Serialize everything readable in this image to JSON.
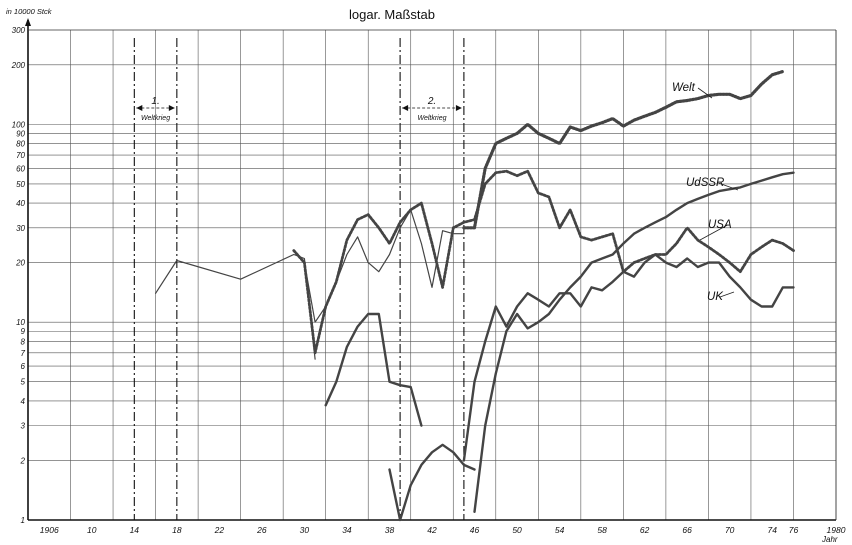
{
  "chart_data": {
    "type": "line",
    "title": "logar. Maßstab",
    "ylabel": "in 10000 Stck",
    "xlabel": "Jahr",
    "yscale": "log",
    "ylim": [
      1,
      300
    ],
    "xlim": [
      1904,
      1980
    ],
    "grid": true,
    "x_tick_labels": [
      {
        "year": 1906,
        "label": "1906"
      },
      {
        "year": 1910,
        "label": "10"
      },
      {
        "year": 1914,
        "label": "14"
      },
      {
        "year": 1918,
        "label": "18"
      },
      {
        "year": 1922,
        "label": "22"
      },
      {
        "year": 1926,
        "label": "26"
      },
      {
        "year": 1930,
        "label": "30"
      },
      {
        "year": 1934,
        "label": "34"
      },
      {
        "year": 1938,
        "label": "38"
      },
      {
        "year": 1942,
        "label": "42"
      },
      {
        "year": 1946,
        "label": "46"
      },
      {
        "year": 1950,
        "label": "50"
      },
      {
        "year": 1954,
        "label": "54"
      },
      {
        "year": 1958,
        "label": "58"
      },
      {
        "year": 1962,
        "label": "62"
      },
      {
        "year": 1966,
        "label": "66"
      },
      {
        "year": 1970,
        "label": "70"
      },
      {
        "year": 1974,
        "label": "74"
      },
      {
        "year": 1976,
        "label": "76"
      },
      {
        "year": 1980,
        "label": "1980"
      }
    ],
    "y_tick_labels": [
      {
        "value": 1,
        "label": "1"
      },
      {
        "value": 2,
        "label": "2"
      },
      {
        "value": 3,
        "label": "3"
      },
      {
        "value": 4,
        "label": "4"
      },
      {
        "value": 5,
        "label": "5"
      },
      {
        "value": 6,
        "label": "6"
      },
      {
        "value": 7,
        "label": "7"
      },
      {
        "value": 8,
        "label": "8"
      },
      {
        "value": 9,
        "label": "9"
      },
      {
        "value": 10,
        "label": "10"
      },
      {
        "value": 20,
        "label": "20"
      },
      {
        "value": 30,
        "label": "30"
      },
      {
        "value": 40,
        "label": "40"
      },
      {
        "value": 50,
        "label": "50"
      },
      {
        "value": 60,
        "label": "60"
      },
      {
        "value": 70,
        "label": "70"
      },
      {
        "value": 80,
        "label": "80"
      },
      {
        "value": 90,
        "label": "90"
      },
      {
        "value": 100,
        "label": "100"
      },
      {
        "value": 200,
        "label": "200"
      },
      {
        "value": 300,
        "label": "300"
      }
    ],
    "annotations": [
      {
        "label": "1.",
        "sublabel": "Weltkrieg",
        "from": 1914,
        "to": 1918
      },
      {
        "label": "2.",
        "sublabel": "Weltkrieg",
        "from": 1939,
        "to": 1945
      }
    ],
    "series": [
      {
        "name": "Welt",
        "style": "dotted",
        "points": [
          [
            1945,
            30
          ],
          [
            1946,
            30
          ],
          [
            1947,
            60
          ],
          [
            1948,
            80
          ],
          [
            1949,
            85
          ],
          [
            1950,
            90
          ],
          [
            1951,
            100
          ],
          [
            1952,
            90
          ],
          [
            1953,
            85
          ],
          [
            1954,
            80
          ],
          [
            1955,
            97
          ],
          [
            1956,
            93
          ],
          [
            1957,
            98
          ],
          [
            1958,
            102
          ],
          [
            1959,
            107
          ],
          [
            1960,
            98
          ],
          [
            1961,
            105
          ],
          [
            1962,
            110
          ],
          [
            1963,
            115
          ],
          [
            1964,
            122
          ],
          [
            1965,
            130
          ],
          [
            1966,
            132
          ],
          [
            1967,
            135
          ],
          [
            1968,
            140
          ],
          [
            1969,
            142
          ],
          [
            1970,
            142
          ],
          [
            1971,
            135
          ],
          [
            1972,
            140
          ],
          [
            1973,
            160
          ],
          [
            1974,
            178
          ],
          [
            1975,
            185
          ]
        ]
      },
      {
        "name": "UdSSR",
        "style": "solid",
        "points": [
          [
            1945,
            0
          ],
          [
            1946,
            1.1
          ],
          [
            1947,
            3
          ],
          [
            1948,
            5.5
          ],
          [
            1949,
            9
          ],
          [
            1950,
            11
          ],
          [
            1951,
            9.3
          ],
          [
            1952,
            10
          ],
          [
            1953,
            11
          ],
          [
            1954,
            13
          ],
          [
            1955,
            15
          ],
          [
            1956,
            17
          ],
          [
            1957,
            20
          ],
          [
            1958,
            21
          ],
          [
            1959,
            22
          ],
          [
            1960,
            25
          ],
          [
            1961,
            28
          ],
          [
            1962,
            30
          ],
          [
            1963,
            32
          ],
          [
            1964,
            34
          ],
          [
            1965,
            37
          ],
          [
            1966,
            40
          ],
          [
            1967,
            42
          ],
          [
            1968,
            44
          ],
          [
            1969,
            46
          ],
          [
            1970,
            47
          ],
          [
            1971,
            48
          ],
          [
            1972,
            50
          ],
          [
            1973,
            52
          ],
          [
            1974,
            54
          ],
          [
            1975,
            56
          ],
          [
            1976,
            57
          ]
        ]
      },
      {
        "name": "USA",
        "style": "dashdot",
        "points": [
          [
            1929,
            23
          ],
          [
            1930,
            20
          ],
          [
            1931,
            7
          ],
          [
            1932,
            12
          ],
          [
            1933,
            16
          ],
          [
            1934,
            26
          ],
          [
            1935,
            33
          ],
          [
            1936,
            35
          ],
          [
            1937,
            30
          ],
          [
            1938,
            25
          ],
          [
            1939,
            32
          ],
          [
            1940,
            37
          ],
          [
            1941,
            40
          ],
          [
            1942,
            25
          ],
          [
            1943,
            15
          ],
          [
            1944,
            30
          ],
          [
            1945,
            32
          ],
          [
            1946,
            33
          ],
          [
            1947,
            50
          ],
          [
            1948,
            57
          ],
          [
            1949,
            58
          ],
          [
            1950,
            55
          ],
          [
            1951,
            58
          ],
          [
            1952,
            45
          ],
          [
            1953,
            43
          ],
          [
            1954,
            30
          ],
          [
            1955,
            37
          ],
          [
            1956,
            27
          ],
          [
            1957,
            26
          ],
          [
            1958,
            27
          ],
          [
            1959,
            28
          ],
          [
            1960,
            18
          ],
          [
            1961,
            20
          ],
          [
            1962,
            21
          ],
          [
            1963,
            22
          ],
          [
            1964,
            22
          ],
          [
            1965,
            25
          ],
          [
            1966,
            30
          ],
          [
            1967,
            26
          ],
          [
            1968,
            24
          ],
          [
            1969,
            22
          ],
          [
            1970,
            20
          ],
          [
            1971,
            18
          ],
          [
            1972,
            22
          ],
          [
            1973,
            24
          ],
          [
            1974,
            26
          ],
          [
            1975,
            25
          ],
          [
            1976,
            23
          ]
        ]
      },
      {
        "name": "UK",
        "style": "solid",
        "points": [
          [
            1945,
            2
          ],
          [
            1946,
            5
          ],
          [
            1947,
            8
          ],
          [
            1948,
            12
          ],
          [
            1949,
            9.5
          ],
          [
            1950,
            12
          ],
          [
            1951,
            14
          ],
          [
            1952,
            13
          ],
          [
            1953,
            12
          ],
          [
            1954,
            14
          ],
          [
            1955,
            14
          ],
          [
            1956,
            12
          ],
          [
            1957,
            15
          ],
          [
            1958,
            14.5
          ],
          [
            1959,
            16
          ],
          [
            1960,
            18
          ],
          [
            1961,
            17
          ],
          [
            1962,
            20
          ],
          [
            1963,
            22
          ],
          [
            1964,
            20
          ],
          [
            1965,
            19
          ],
          [
            1966,
            21
          ],
          [
            1967,
            19
          ],
          [
            1968,
            20
          ],
          [
            1969,
            20
          ],
          [
            1970,
            17
          ],
          [
            1971,
            15
          ],
          [
            1972,
            13
          ],
          [
            1973,
            12
          ],
          [
            1974,
            12
          ],
          [
            1975,
            15
          ],
          [
            1976,
            15
          ]
        ]
      },
      {
        "name": "",
        "style": "solid-thin",
        "points": [
          [
            1916,
            14
          ],
          [
            1918,
            20.5
          ],
          [
            1924,
            16.5
          ],
          [
            1929,
            22
          ],
          [
            1930,
            21
          ],
          [
            1931,
            6.5
          ]
        ]
      },
      {
        "name": "",
        "style": "solid",
        "points": [
          [
            1932,
            3.8
          ],
          [
            1933,
            5
          ],
          [
            1934,
            7.5
          ],
          [
            1935,
            9.5
          ],
          [
            1936,
            11
          ],
          [
            1937,
            11
          ],
          [
            1938,
            5
          ],
          [
            1939,
            4.8
          ],
          [
            1940,
            4.7
          ],
          [
            1941,
            3
          ]
        ]
      },
      {
        "name": "",
        "style": "solid",
        "points": [
          [
            1938,
            1.8
          ],
          [
            1939,
            1
          ],
          [
            1940,
            1.5
          ],
          [
            1941,
            1.9
          ],
          [
            1942,
            2.2
          ],
          [
            1943,
            2.4
          ],
          [
            1944,
            2.2
          ],
          [
            1945,
            1.9
          ],
          [
            1946,
            1.8
          ]
        ]
      },
      {
        "name": "",
        "style": "solid-thin",
        "points": [
          [
            1930,
            20
          ],
          [
            1931,
            10
          ],
          [
            1932,
            12
          ],
          [
            1933,
            16
          ],
          [
            1934,
            22
          ],
          [
            1935,
            27
          ],
          [
            1936,
            20
          ],
          [
            1937,
            18
          ],
          [
            1938,
            22
          ],
          [
            1939,
            30
          ],
          [
            1940,
            37
          ],
          [
            1941,
            25
          ],
          [
            1942,
            15
          ],
          [
            1943,
            29
          ],
          [
            1944,
            28
          ],
          [
            1945,
            28
          ]
        ]
      }
    ]
  }
}
